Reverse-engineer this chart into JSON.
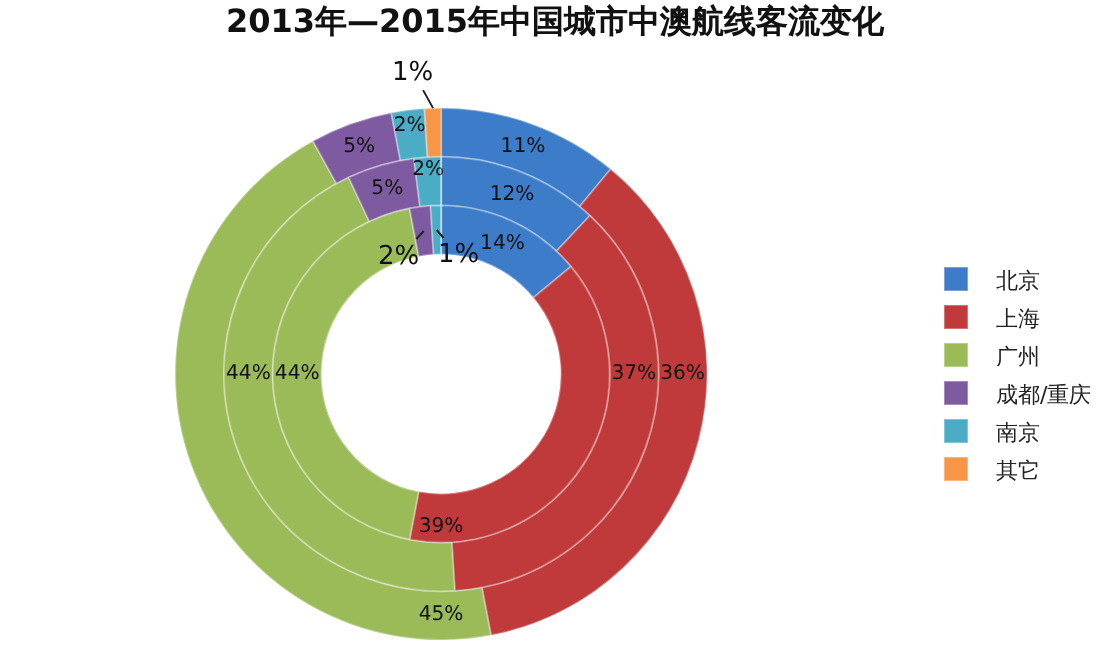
{
  "chart_data": {
    "type": "donut",
    "title": "2013年—2015年中国城市中澳航线客流变化",
    "categories": [
      "北京",
      "上海",
      "广州",
      "成都/重庆",
      "南京",
      "其它"
    ],
    "colors": [
      "#3d7cc9",
      "#c0393b",
      "#9bbb59",
      "#7e5aa0",
      "#4bacc6",
      "#f79646"
    ],
    "series": [
      {
        "values": [
          11,
          36,
          45,
          5,
          2,
          1
        ],
        "value_labels": [
          "11%",
          "36%",
          "45%",
          "5%",
          "2%",
          "1%"
        ]
      },
      {
        "values": [
          12,
          37,
          44,
          5,
          2,
          0
        ],
        "value_labels": [
          "12%",
          "37%",
          "44%",
          "5%",
          "2%",
          null
        ]
      },
      {
        "values": [
          14,
          39,
          44,
          2,
          1,
          0
        ],
        "value_labels": [
          "14%",
          "39%",
          "44%",
          "2%",
          "1%",
          null
        ]
      }
    ],
    "legend": "right"
  }
}
